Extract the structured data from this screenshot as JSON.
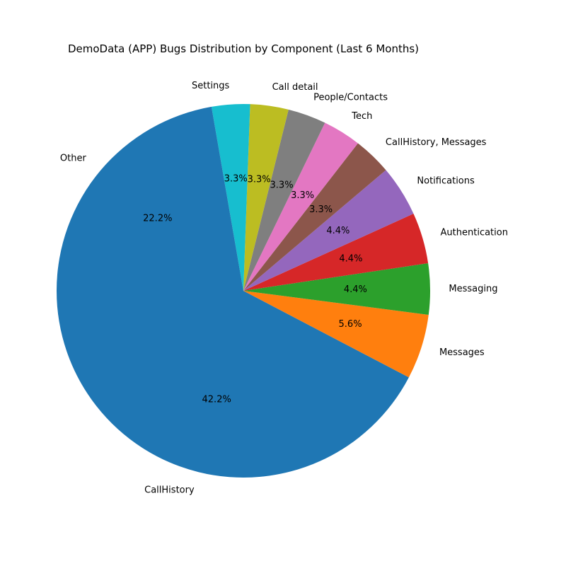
{
  "chart_data": {
    "type": "pie",
    "title": "DemoData (APP) Bugs Distribution by Component (Last 6 Months)",
    "start_angle_deg": 180,
    "direction": "counterclockwise",
    "slices": [
      {
        "label": "CallHistory",
        "value": 42.2,
        "pct_label": "42.2%",
        "color": "#1f77b4"
      },
      {
        "label": "Messages",
        "value": 5.6,
        "pct_label": "5.6%",
        "color": "#ff7f0e"
      },
      {
        "label": "Messaging",
        "value": 4.4,
        "pct_label": "4.4%",
        "color": "#2ca02c"
      },
      {
        "label": "Authentication",
        "value": 4.4,
        "pct_label": "4.4%",
        "color": "#d62728"
      },
      {
        "label": "Notifications",
        "value": 4.4,
        "pct_label": "4.4%",
        "color": "#9467bd"
      },
      {
        "label": "CallHistory, Messages",
        "value": 3.3,
        "pct_label": "3.3%",
        "color": "#8c564b"
      },
      {
        "label": "Tech",
        "value": 3.3,
        "pct_label": "3.3%",
        "color": "#e377c2"
      },
      {
        "label": "People/Contacts",
        "value": 3.3,
        "pct_label": "3.3%",
        "color": "#7f7f7f"
      },
      {
        "label": "Call detail",
        "value": 3.3,
        "pct_label": "3.3%",
        "color": "#bcbd22"
      },
      {
        "label": "Settings",
        "value": 3.3,
        "pct_label": "3.3%",
        "color": "#17becf"
      },
      {
        "label": "Other",
        "value": 22.2,
        "pct_label": "22.2%",
        "color": "#1f77b4"
      }
    ]
  }
}
